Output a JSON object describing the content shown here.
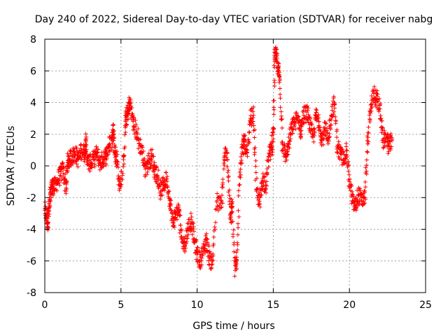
{
  "colors": {
    "background": "#ffffff",
    "grid": "#a0a0a0",
    "axis": "#000000",
    "series": "#ff0000"
  },
  "chart_data": {
    "type": "scatter",
    "title": "Day 240 of 2022, Sidereal Day-to-day VTEC variation (SDTVAR) for receiver nabg",
    "xlabel": "GPS time / hours",
    "ylabel": "SDTVAR / TECUs",
    "xlim": [
      0,
      25
    ],
    "ylim": [
      -8,
      8
    ],
    "xticks": [
      0,
      5,
      10,
      15,
      20,
      25
    ],
    "yticks": [
      -8,
      -6,
      -4,
      -2,
      0,
      2,
      4,
      6,
      8
    ],
    "grid": true,
    "marker": "+",
    "series": [
      {
        "name": "SDTVAR",
        "x": [
          0.0,
          0.1,
          0.2,
          0.3,
          0.4,
          0.5,
          0.6,
          0.8,
          1.0,
          1.2,
          1.4,
          1.5,
          1.6,
          1.8,
          2.0,
          2.2,
          2.4,
          2.6,
          2.7,
          2.8,
          3.0,
          3.2,
          3.4,
          3.6,
          3.8,
          4.0,
          4.2,
          4.4,
          4.5,
          4.6,
          4.7,
          4.9,
          5.1,
          5.3,
          5.4,
          5.5,
          5.6,
          5.8,
          6.0,
          6.2,
          6.4,
          6.6,
          6.8,
          7.0,
          7.2,
          7.4,
          7.6,
          7.8,
          8.0,
          8.2,
          8.4,
          8.6,
          8.8,
          9.0,
          9.2,
          9.4,
          9.6,
          9.8,
          10.0,
          10.2,
          10.4,
          10.6,
          10.8,
          11.0,
          11.3,
          11.6,
          11.8,
          12.0,
          12.2,
          12.3,
          12.5,
          12.6,
          12.8,
          13.0,
          13.1,
          13.3,
          13.5,
          13.7,
          13.9,
          14.1,
          14.3,
          14.5,
          14.7,
          14.9,
          15.0,
          15.1,
          15.2,
          15.3,
          15.4,
          15.6,
          15.8,
          16.0,
          16.2,
          16.4,
          16.6,
          16.8,
          17.0,
          17.2,
          17.4,
          17.6,
          17.8,
          18.0,
          18.2,
          18.4,
          18.6,
          18.8,
          19.0,
          19.2,
          19.4,
          19.6,
          19.8,
          20.0,
          20.2,
          20.4,
          20.6,
          20.8,
          21.0,
          21.2,
          21.4,
          21.6,
          21.8,
          22.0,
          22.2,
          22.4,
          22.6,
          22.8
        ],
        "y": [
          -2.8,
          -3.2,
          -3.6,
          -2.6,
          -1.6,
          -1.2,
          -1.4,
          -1.0,
          -0.6,
          -0.2,
          -1.4,
          0.2,
          0.4,
          0.6,
          0.8,
          0.4,
          1.0,
          0.8,
          1.6,
          0.2,
          0.2,
          0.4,
          0.8,
          0.2,
          0.4,
          0.6,
          1.2,
          1.6,
          2.6,
          0.8,
          0.6,
          -1.2,
          -0.6,
          2.8,
          3.2,
          3.6,
          4.0,
          2.8,
          2.2,
          1.4,
          0.8,
          -0.2,
          0.2,
          0.6,
          -0.2,
          -0.6,
          -1.6,
          -1.2,
          -0.8,
          -2.2,
          -3.6,
          -3.0,
          -2.8,
          -4.6,
          -5.0,
          -4.0,
          -3.4,
          -4.6,
          -5.6,
          -6.0,
          -5.4,
          -4.6,
          -5.8,
          -6.2,
          -2.2,
          -2.6,
          0.8,
          0.4,
          -3.4,
          -2.4,
          -6.6,
          -6.0,
          -0.4,
          1.2,
          1.6,
          0.6,
          3.0,
          3.2,
          -1.6,
          -2.4,
          -0.8,
          -1.2,
          0.6,
          1.2,
          2.0,
          6.8,
          7.0,
          6.2,
          5.6,
          1.4,
          0.6,
          1.2,
          2.4,
          2.8,
          3.0,
          2.2,
          3.2,
          3.4,
          2.6,
          1.8,
          3.2,
          2.8,
          1.6,
          2.4,
          1.4,
          3.2,
          4.0,
          1.2,
          0.8,
          0.4,
          1.0,
          -1.0,
          -2.2,
          -2.6,
          -1.8,
          -2.2,
          -2.0,
          1.4,
          3.6,
          4.6,
          4.2,
          3.6,
          1.6,
          1.8,
          1.2,
          1.6
        ],
        "note": "Dense cloud of red '+' markers between 0 and ~22.8 h; listed points trace the observed trajectory with local spread."
      }
    ]
  }
}
